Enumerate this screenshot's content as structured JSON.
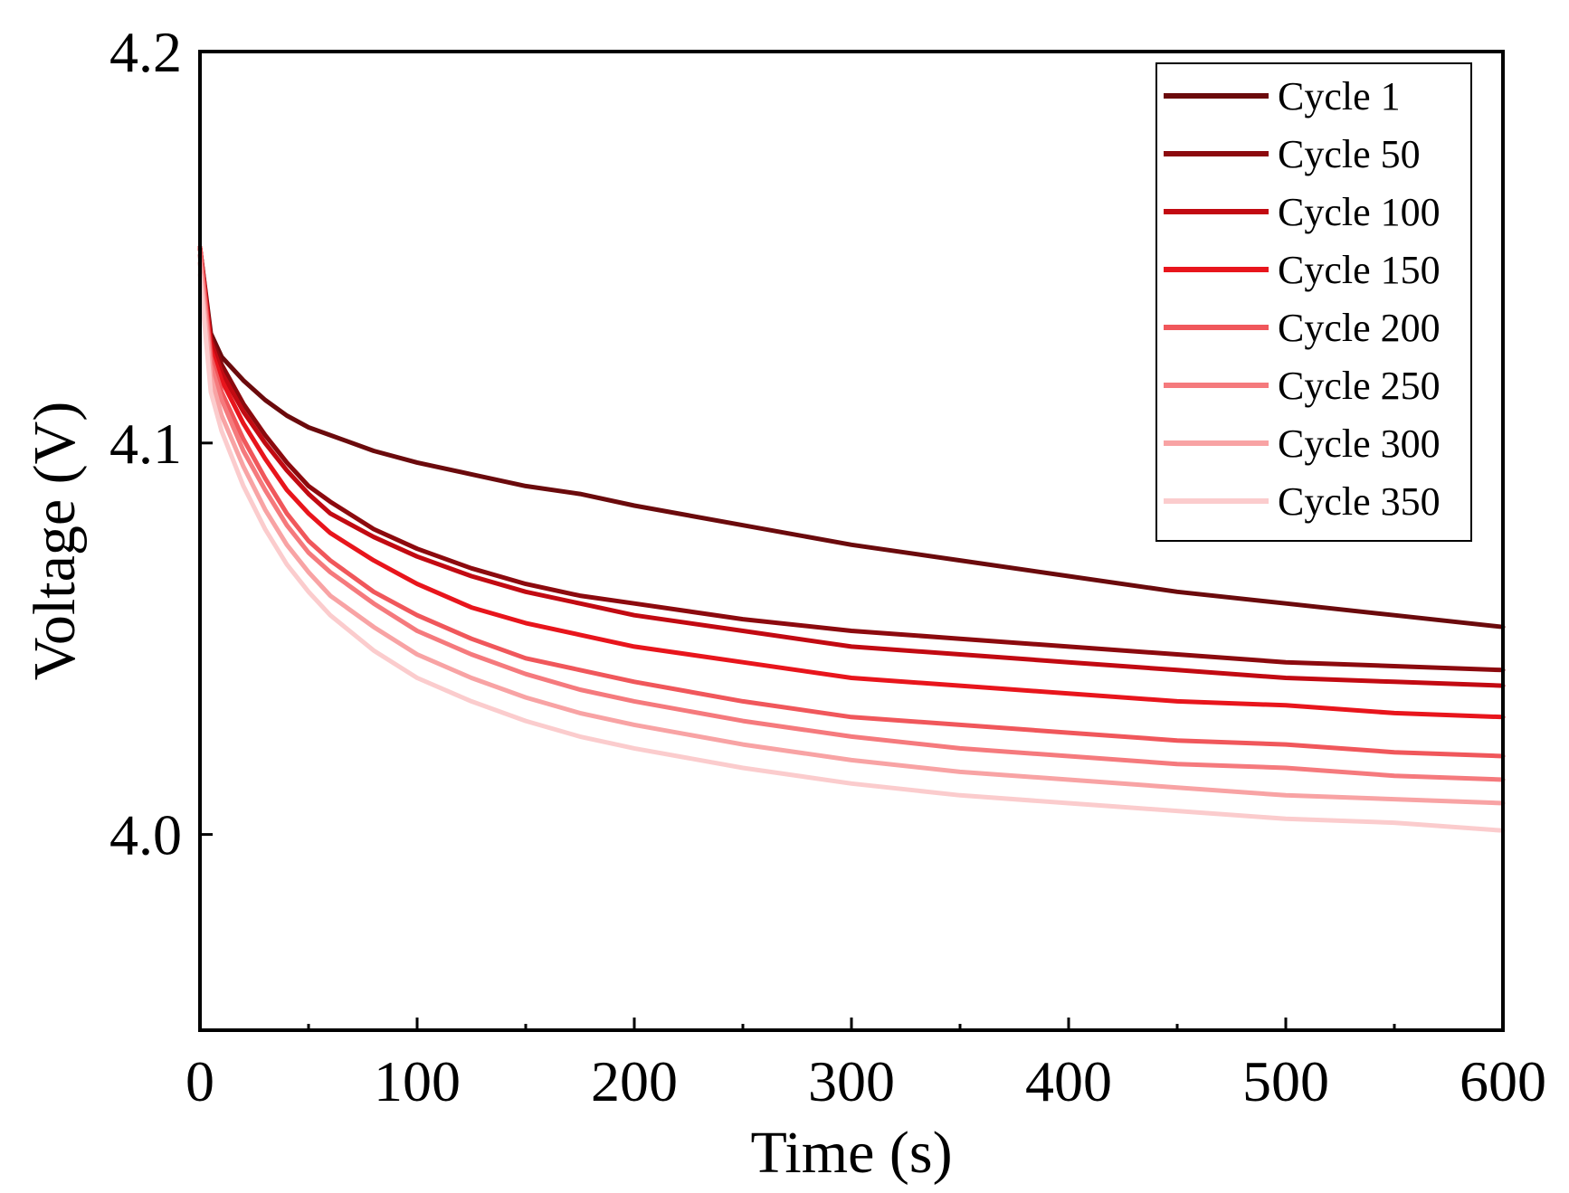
{
  "chart_data": {
    "type": "line",
    "title": "",
    "xlabel": "Time (s)",
    "ylabel": "Voltage (V)",
    "xlim": [
      0,
      600
    ],
    "ylim": [
      3.95,
      4.2
    ],
    "xticks": [
      0,
      100,
      200,
      300,
      400,
      500,
      600
    ],
    "xtick_labels": [
      "0",
      "100",
      "200",
      "300",
      "400",
      "500",
      "600"
    ],
    "yticks": [
      4.0,
      4.1,
      4.2
    ],
    "ytick_labels": [
      "4.0",
      "4.1",
      "4.2"
    ],
    "grid": false,
    "legend_position": "top-right",
    "x": [
      0,
      5,
      10,
      20,
      30,
      40,
      50,
      60,
      80,
      100,
      125,
      150,
      175,
      200,
      250,
      300,
      350,
      400,
      450,
      500,
      550,
      600
    ],
    "series": [
      {
        "name": "Cycle 1",
        "color": "#6b0a0c",
        "values": [
          4.15,
          4.128,
          4.122,
          4.116,
          4.111,
          4.107,
          4.104,
          4.102,
          4.098,
          4.095,
          4.092,
          4.089,
          4.087,
          4.084,
          4.079,
          4.074,
          4.07,
          4.066,
          4.062,
          4.059,
          4.056,
          4.053
        ]
      },
      {
        "name": "Cycle 50",
        "color": "#8c0a0e",
        "values": [
          4.15,
          4.127,
          4.12,
          4.11,
          4.102,
          4.095,
          4.089,
          4.085,
          4.078,
          4.073,
          4.068,
          4.064,
          4.061,
          4.059,
          4.055,
          4.052,
          4.05,
          4.048,
          4.046,
          4.044,
          4.043,
          4.042
        ]
      },
      {
        "name": "Cycle 100",
        "color": "#c20a12",
        "values": [
          4.15,
          4.126,
          4.118,
          4.108,
          4.1,
          4.093,
          4.087,
          4.082,
          4.076,
          4.071,
          4.066,
          4.062,
          4.059,
          4.056,
          4.052,
          4.048,
          4.046,
          4.044,
          4.042,
          4.04,
          4.039,
          4.038
        ]
      },
      {
        "name": "Cycle 150",
        "color": "#e8151c",
        "values": [
          4.15,
          4.124,
          4.116,
          4.105,
          4.096,
          4.088,
          4.082,
          4.077,
          4.07,
          4.064,
          4.058,
          4.054,
          4.051,
          4.048,
          4.044,
          4.04,
          4.038,
          4.036,
          4.034,
          4.033,
          4.031,
          4.03
        ]
      },
      {
        "name": "Cycle 200",
        "color": "#f0575b",
        "values": [
          4.15,
          4.122,
          4.113,
          4.101,
          4.091,
          4.082,
          4.075,
          4.07,
          4.062,
          4.056,
          4.05,
          4.045,
          4.042,
          4.039,
          4.034,
          4.03,
          4.028,
          4.026,
          4.024,
          4.023,
          4.021,
          4.02
        ]
      },
      {
        "name": "Cycle 250",
        "color": "#f57a7d",
        "values": [
          4.148,
          4.12,
          4.111,
          4.098,
          4.088,
          4.079,
          4.072,
          4.067,
          4.059,
          4.052,
          4.046,
          4.041,
          4.037,
          4.034,
          4.029,
          4.025,
          4.022,
          4.02,
          4.018,
          4.017,
          4.015,
          4.014
        ]
      },
      {
        "name": "Cycle 300",
        "color": "#f8a3a4",
        "values": [
          4.146,
          4.117,
          4.107,
          4.094,
          4.083,
          4.074,
          4.067,
          4.061,
          4.053,
          4.046,
          4.04,
          4.035,
          4.031,
          4.028,
          4.023,
          4.019,
          4.016,
          4.014,
          4.012,
          4.01,
          4.009,
          4.008
        ]
      },
      {
        "name": "Cycle 350",
        "color": "#fbcccd",
        "values": [
          4.143,
          4.113,
          4.103,
          4.089,
          4.078,
          4.069,
          4.062,
          4.056,
          4.047,
          4.04,
          4.034,
          4.029,
          4.025,
          4.022,
          4.017,
          4.013,
          4.01,
          4.008,
          4.006,
          4.004,
          4.003,
          4.001
        ]
      }
    ]
  }
}
